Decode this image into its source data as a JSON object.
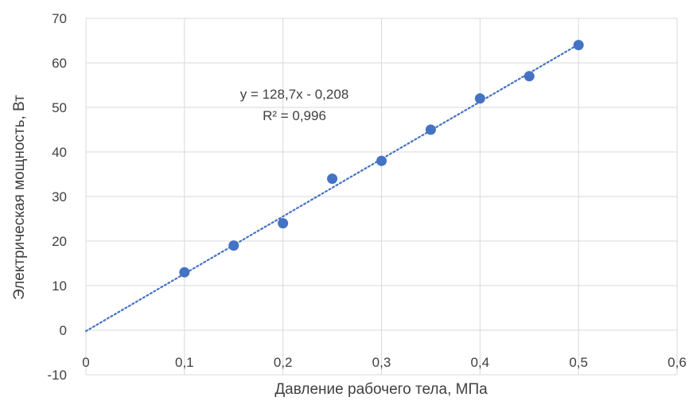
{
  "chart_data": {
    "type": "scatter",
    "title": "",
    "xlabel": "Давление рабочего тела, МПа",
    "ylabel": "Электрическая мощность, Вт",
    "xlim": [
      0,
      0.6
    ],
    "ylim": [
      -10,
      70
    ],
    "x_ticks": [
      0,
      0.1,
      0.2,
      0.3,
      0.4,
      0.5,
      0.6
    ],
    "x_tick_labels": [
      "0",
      "0,1",
      "0,2",
      "0,3",
      "0,4",
      "0,5",
      "0,6"
    ],
    "y_ticks": [
      -10,
      0,
      10,
      20,
      30,
      40,
      50,
      60,
      70
    ],
    "y_tick_labels": [
      "-10",
      "0",
      "10",
      "20",
      "30",
      "40",
      "50",
      "60",
      "70"
    ],
    "grid": true,
    "series": [
      {
        "x": [
          0.1,
          0.15,
          0.2,
          0.25,
          0.3,
          0.35,
          0.4,
          0.45,
          0.5
        ],
        "y": [
          13,
          19,
          24,
          34,
          38,
          45,
          52,
          57,
          64
        ],
        "color": "#4472c4",
        "marker": "circle"
      }
    ],
    "trendline": {
      "type": "linear",
      "slope": 128.7,
      "intercept": -0.208,
      "x_range": [
        0,
        0.5
      ],
      "style": "dotted",
      "color": "#4472c4"
    },
    "annotations": {
      "equation": "y = 128,7x - 0,208",
      "r_squared": "R² = 0,996"
    }
  }
}
